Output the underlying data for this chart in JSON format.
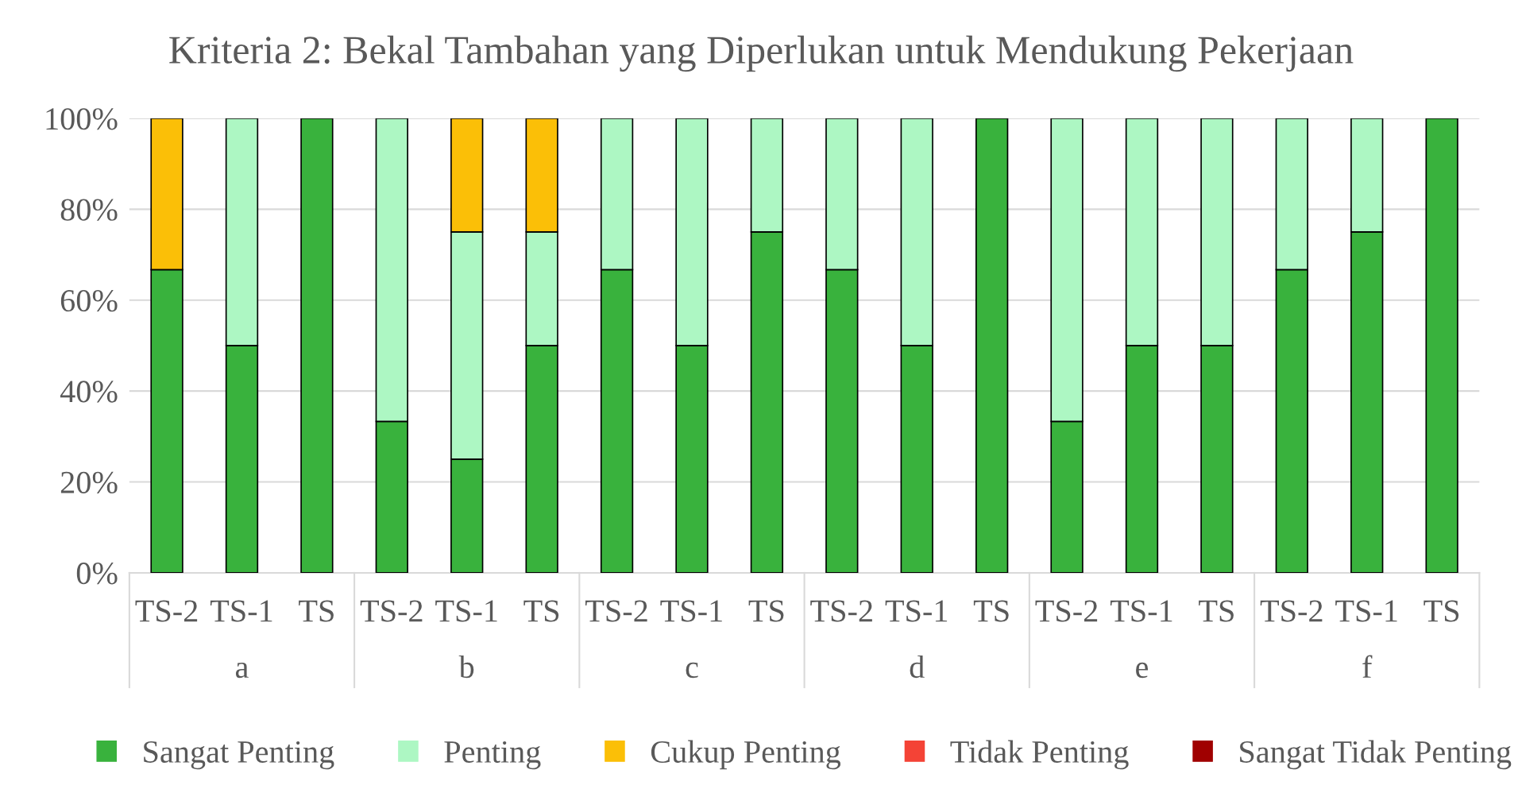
{
  "chart_data": {
    "type": "bar",
    "stacked": true,
    "title": "Kriteria 2: Bekal Tambahan yang Diperlukan untuk Mendukung Pekerjaan",
    "categories": [
      "TS-2",
      "TS-1",
      "TS",
      "TS-2",
      "TS-1",
      "TS",
      "TS-2",
      "TS-1",
      "TS",
      "TS-2",
      "TS-1",
      "TS",
      "TS-2",
      "TS-1",
      "TS",
      "TS-2",
      "TS-1",
      "TS"
    ],
    "annotations": [
      "a",
      "b",
      "c",
      "d",
      "e",
      "f"
    ],
    "series": [
      {
        "name": "Sangat Penting",
        "color": "#39b23d",
        "values": [
          66.7,
          50,
          100,
          33.3,
          25,
          50,
          66.7,
          50,
          75,
          66.7,
          50,
          100,
          33.3,
          50,
          50,
          66.7,
          75,
          100
        ]
      },
      {
        "name": "Penting",
        "color": "#adf7c3",
        "values": [
          0,
          50,
          0,
          66.7,
          50,
          25,
          33.3,
          50,
          25,
          33.3,
          50,
          0,
          66.7,
          50,
          50,
          33.3,
          25,
          0
        ]
      },
      {
        "name": "Cukup Penting",
        "color": "#fbbf07",
        "values": [
          33.3,
          0,
          0,
          0,
          25,
          25,
          0,
          0,
          0,
          0,
          0,
          0,
          0,
          0,
          0,
          0,
          0,
          0
        ]
      },
      {
        "name": "Tidak Penting",
        "color": "#f44336",
        "values": [
          0,
          0,
          0,
          0,
          0,
          0,
          0,
          0,
          0,
          0,
          0,
          0,
          0,
          0,
          0,
          0,
          0,
          0
        ]
      },
      {
        "name": "Sangat Tidak Penting",
        "color": "#a00000",
        "values": [
          0,
          0,
          0,
          0,
          0,
          0,
          0,
          0,
          0,
          0,
          0,
          0,
          0,
          0,
          0,
          0,
          0,
          0
        ]
      }
    ],
    "ylim": [
      0,
      100
    ],
    "yticks": [
      {
        "value": 0,
        "label": "0%"
      },
      {
        "value": 20,
        "label": "20%"
      },
      {
        "value": 40,
        "label": "40%"
      },
      {
        "value": 60,
        "label": "60%"
      },
      {
        "value": 80,
        "label": "80%"
      },
      {
        "value": 100,
        "label": "100%"
      }
    ],
    "grid": "y",
    "legend": "bottom"
  }
}
